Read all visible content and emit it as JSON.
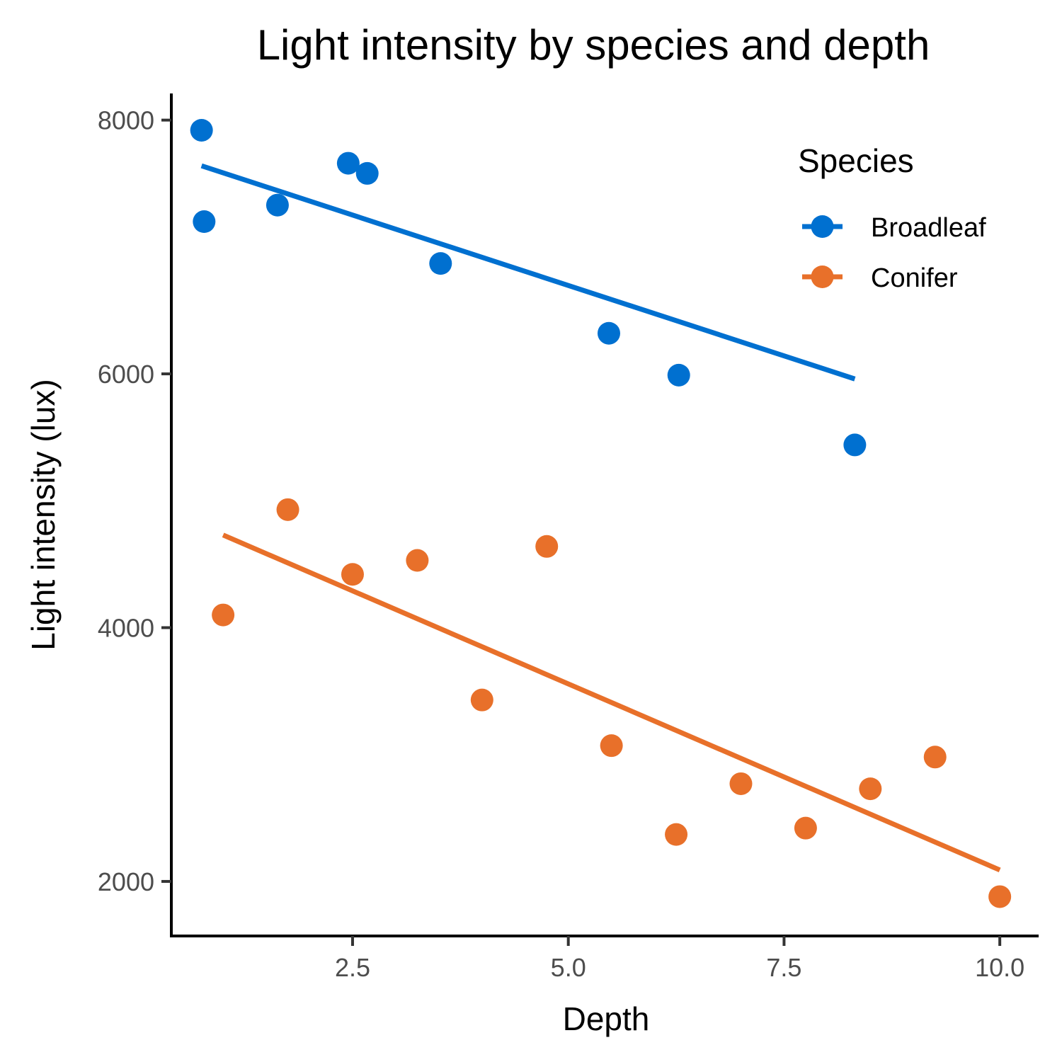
{
  "chart_data": {
    "type": "scatter",
    "title": "Light intensity by species and depth",
    "xlabel": "Depth",
    "ylabel": "Light intensity (lux)",
    "xlim": [
      0.4,
      10.45
    ],
    "ylim": [
      1570,
      8210
    ],
    "xticks": [
      2.5,
      5.0,
      7.5,
      10.0
    ],
    "xtick_labels": [
      "2.5",
      "5.0",
      "7.5",
      "10.0"
    ],
    "yticks": [
      2000,
      4000,
      6000,
      8000
    ],
    "ytick_labels": [
      "2000",
      "4000",
      "6000",
      "8000"
    ],
    "grid": false,
    "legend": {
      "title": "Species",
      "position": "top-right"
    },
    "series": [
      {
        "name": "Broadleaf",
        "color": "#0070d0",
        "points": [
          {
            "x": 0.75,
            "y": 7920
          },
          {
            "x": 0.78,
            "y": 7200
          },
          {
            "x": 1.63,
            "y": 7330
          },
          {
            "x": 2.45,
            "y": 7660
          },
          {
            "x": 2.67,
            "y": 7580
          },
          {
            "x": 3.52,
            "y": 6870
          },
          {
            "x": 5.47,
            "y": 6320
          },
          {
            "x": 6.28,
            "y": 5990
          },
          {
            "x": 8.32,
            "y": 5440
          }
        ],
        "fit": {
          "x": [
            0.75,
            8.32
          ],
          "y": [
            7640,
            5960
          ]
        }
      },
      {
        "name": "Conifer",
        "color": "#e8702a",
        "points": [
          {
            "x": 1.0,
            "y": 4100
          },
          {
            "x": 1.75,
            "y": 4930
          },
          {
            "x": 2.5,
            "y": 4420
          },
          {
            "x": 3.25,
            "y": 4530
          },
          {
            "x": 4.0,
            "y": 3430
          },
          {
            "x": 4.75,
            "y": 4640
          },
          {
            "x": 5.5,
            "y": 3070
          },
          {
            "x": 6.25,
            "y": 2370
          },
          {
            "x": 7.0,
            "y": 2770
          },
          {
            "x": 7.75,
            "y": 2420
          },
          {
            "x": 8.5,
            "y": 2730
          },
          {
            "x": 9.25,
            "y": 2980
          },
          {
            "x": 10.0,
            "y": 1880
          }
        ],
        "fit": {
          "x": [
            1.0,
            10.0
          ],
          "y": [
            4730,
            2090
          ]
        }
      }
    ]
  }
}
